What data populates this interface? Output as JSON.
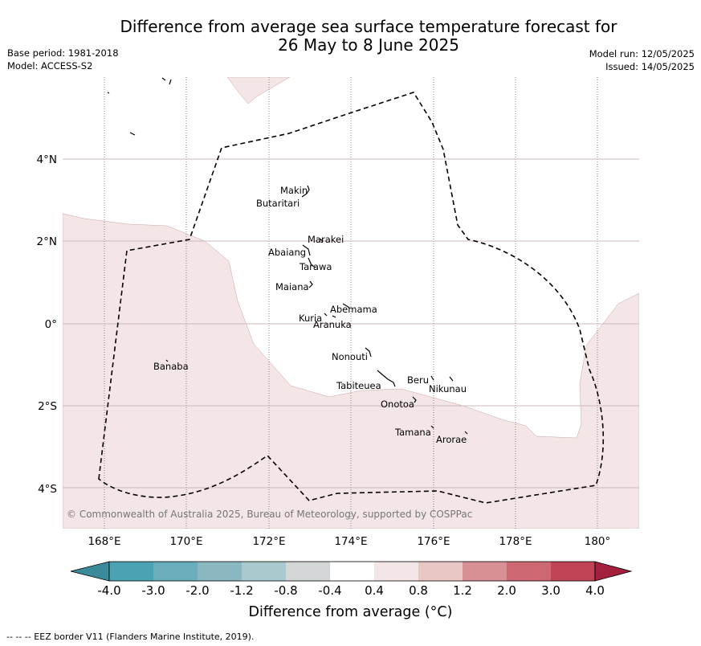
{
  "title_line1": "Difference from average sea surface temperature forecast for",
  "title_line2": "26 May to 8 June 2025",
  "meta_left": [
    "Base period: 1981-2018",
    "Model: ACCESS-S2"
  ],
  "meta_right": [
    "Model run: 12/05/2025",
    "Issued: 14/05/2025"
  ],
  "lon_ticks": [
    "168°E",
    "170°E",
    "172°E",
    "174°E",
    "176°E",
    "178°E",
    "180°"
  ],
  "lat_ticks": [
    "4°N",
    "2°N",
    "0°",
    "2°S",
    "4°S"
  ],
  "places": [
    "Makin",
    "Butaritari",
    "Marakei",
    "Abaiang",
    "Tarawa",
    "Maiana",
    "Abemama",
    "Kuria",
    "Aranuka",
    "Banaba",
    "Nonouti",
    "Tabiteuea",
    "Beru",
    "Nikunau",
    "Onotoa",
    "Tamana",
    "Arorae"
  ],
  "copyright": "© Commonwealth of Australia 2025, Bureau of Meteorology, supported by COSPPac",
  "colorbar": {
    "ticks": [
      "-4.0",
      "-3.0",
      "-2.0",
      "-1.2",
      "-0.8",
      "-0.4",
      "0.4",
      "0.8",
      "1.2",
      "2.0",
      "3.0",
      "4.0"
    ],
    "colors": [
      "#3a8a99",
      "#4aa3b2",
      "#6aaebb",
      "#8ab8c2",
      "#a8c9cd",
      "#d3d6d6",
      "#ffffff",
      "#f4e6e6",
      "#e9c7c5",
      "#d98f96",
      "#cd6771",
      "#c14455",
      "#a51f3e"
    ],
    "title": "Difference from average (°C)"
  },
  "legend_footer": "--  --  -- EEZ border V11 (Flanders Marine Institute, 2019)."
}
